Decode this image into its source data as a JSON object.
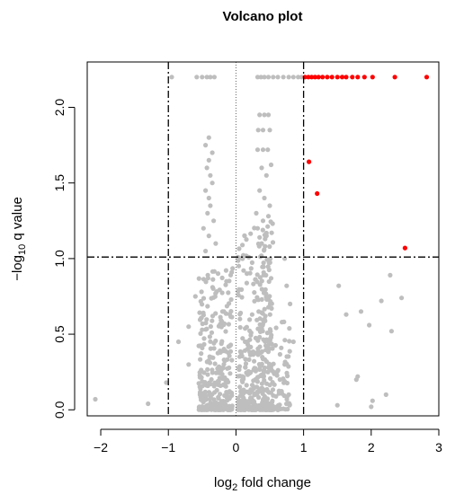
{
  "chart_data": {
    "type": "scatter",
    "title": "Volcano plot",
    "xlabel_prefix": "log",
    "xlabel_sub": "2",
    "xlabel_suffix": " fold change",
    "ylabel_prefix": "−log",
    "ylabel_sub": "10",
    "ylabel_suffix": " q value",
    "xlim": [
      -2.2,
      3.0
    ],
    "ylim": [
      -0.04,
      2.3
    ],
    "x_ticks": [
      -2,
      -1,
      0,
      1,
      2,
      3
    ],
    "x_tick_labels": [
      "−2",
      "−1",
      "0",
      "1",
      "2",
      "3"
    ],
    "y_ticks": [
      0.0,
      0.5,
      1.0,
      1.5,
      2.0
    ],
    "y_tick_labels": [
      "0.0",
      "0.5",
      "1.0",
      "1.5",
      "2.0"
    ],
    "reference_lines": {
      "fold_change_cutoffs": [
        -1,
        1
      ],
      "q_threshold": 1.01,
      "zero_line": 0
    },
    "colors": {
      "not_significant": "#BEBEBE",
      "significant": "#FF0000",
      "lines": "#000000"
    },
    "series": [
      {
        "role": "significant",
        "points": [
          [
            1.02,
            2.2
          ],
          [
            1.07,
            2.2
          ],
          [
            1.12,
            2.2
          ],
          [
            1.17,
            2.2
          ],
          [
            1.22,
            2.2
          ],
          [
            1.28,
            2.2
          ],
          [
            1.35,
            2.2
          ],
          [
            1.42,
            2.2
          ],
          [
            1.5,
            2.2
          ],
          [
            1.57,
            2.2
          ],
          [
            1.63,
            2.2
          ],
          [
            1.72,
            2.2
          ],
          [
            1.8,
            2.2
          ],
          [
            1.9,
            2.2
          ],
          [
            2.02,
            2.2
          ],
          [
            2.35,
            2.2
          ],
          [
            2.82,
            2.2
          ],
          [
            1.08,
            1.64
          ],
          [
            1.2,
            1.43
          ],
          [
            2.5,
            1.07
          ]
        ]
      },
      {
        "role": "not_significant",
        "points": [
          [
            -0.95,
            2.2
          ],
          [
            -0.58,
            2.2
          ],
          [
            -0.5,
            2.2
          ],
          [
            -0.43,
            2.2
          ],
          [
            -0.38,
            2.2
          ],
          [
            -0.32,
            2.2
          ],
          [
            0.32,
            2.2
          ],
          [
            0.37,
            2.2
          ],
          [
            0.42,
            2.2
          ],
          [
            0.48,
            2.2
          ],
          [
            0.55,
            2.2
          ],
          [
            0.62,
            2.2
          ],
          [
            0.7,
            2.2
          ],
          [
            0.78,
            2.2
          ],
          [
            0.85,
            2.2
          ],
          [
            0.92,
            2.2
          ],
          [
            0.97,
            2.2
          ],
          [
            0.35,
            1.95
          ],
          [
            0.42,
            1.95
          ],
          [
            0.48,
            1.95
          ],
          [
            0.33,
            1.85
          ],
          [
            0.4,
            1.85
          ],
          [
            0.5,
            1.85
          ],
          [
            0.32,
            1.72
          ],
          [
            0.4,
            1.72
          ],
          [
            0.47,
            1.72
          ],
          [
            0.52,
            1.62
          ],
          [
            0.38,
            1.6
          ],
          [
            0.45,
            1.55
          ],
          [
            0.35,
            1.45
          ],
          [
            0.42,
            1.4
          ],
          [
            0.5,
            1.35
          ],
          [
            0.3,
            1.3
          ],
          [
            0.48,
            1.28
          ],
          [
            0.4,
            1.25
          ],
          [
            0.32,
            1.2
          ],
          [
            0.45,
            1.15
          ],
          [
            0.38,
            1.1
          ],
          [
            -0.4,
            1.8
          ],
          [
            -0.45,
            1.75
          ],
          [
            -0.35,
            1.7
          ],
          [
            -0.4,
            1.65
          ],
          [
            -0.43,
            1.6
          ],
          [
            -0.38,
            1.55
          ],
          [
            -0.35,
            1.5
          ],
          [
            -0.45,
            1.45
          ],
          [
            -0.4,
            1.4
          ],
          [
            -0.38,
            1.35
          ],
          [
            -0.42,
            1.3
          ],
          [
            -0.33,
            1.25
          ],
          [
            -0.48,
            1.2
          ],
          [
            -0.4,
            1.15
          ],
          [
            -0.3,
            1.1
          ],
          [
            -0.45,
            1.05
          ],
          [
            -2.08,
            0.07
          ],
          [
            -1.3,
            0.04
          ],
          [
            -1.03,
            0.18
          ],
          [
            -0.85,
            0.45
          ],
          [
            -0.7,
            0.3
          ],
          [
            -0.7,
            0.55
          ],
          [
            -0.6,
            0.75
          ],
          [
            0.72,
            1.0
          ],
          [
            0.75,
            0.82
          ],
          [
            0.8,
            0.7
          ],
          [
            0.68,
            0.58
          ],
          [
            0.85,
            0.45
          ],
          [
            0.72,
            0.3
          ],
          [
            0.65,
            0.2
          ],
          [
            0.78,
            0.1
          ],
          [
            1.52,
            0.82
          ],
          [
            1.63,
            0.63
          ],
          [
            1.78,
            0.2
          ],
          [
            1.8,
            0.22
          ],
          [
            1.85,
            0.65
          ],
          [
            1.97,
            0.56
          ],
          [
            2.0,
            0.02
          ],
          [
            2.02,
            0.06
          ],
          [
            2.15,
            0.72
          ],
          [
            2.22,
            0.1
          ],
          [
            2.28,
            0.89
          ],
          [
            2.3,
            0.52
          ],
          [
            2.45,
            0.74
          ],
          [
            1.5,
            0.03
          ]
        ],
        "cloud": [
          {
            "xmin": 0.03,
            "xmax": 0.55,
            "ymax": 1.25,
            "n": 430
          },
          {
            "xmin": -0.55,
            "xmax": -0.05,
            "ymax": 0.95,
            "n": 300
          },
          {
            "xmin": 0.55,
            "xmax": 0.8,
            "ymax": 0.6,
            "n": 60
          }
        ]
      }
    ]
  }
}
